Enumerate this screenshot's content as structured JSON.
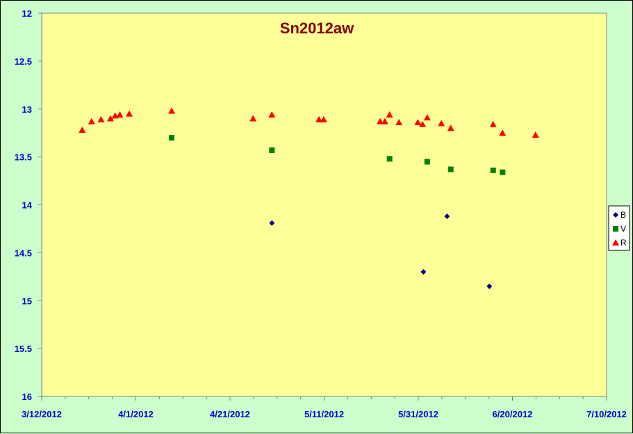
{
  "chart_data": {
    "type": "scatter",
    "title": "Sn2012aw",
    "xlabel": "",
    "ylabel": "",
    "x_tick_labels": [
      "3/12/2012",
      "4/1/2012",
      "4/21/2012",
      "5/11/2012",
      "5/31/2012",
      "6/20/2012",
      "7/10/2012"
    ],
    "x_tick_days": [
      0,
      20,
      40,
      60,
      80,
      100,
      120
    ],
    "x_minor_days": [
      5,
      10,
      15,
      25,
      30,
      35,
      45,
      50,
      55,
      65,
      70,
      75,
      85,
      90,
      95,
      105,
      110,
      115
    ],
    "xlim_days": [
      0,
      120
    ],
    "y_tick_labels": [
      "12",
      "12.5",
      "13",
      "13.5",
      "14",
      "14.5",
      "15",
      "15.5",
      "16"
    ],
    "y_tick_values": [
      12,
      12.5,
      13,
      13.5,
      14,
      14.5,
      15,
      15.5,
      16
    ],
    "ylim": [
      12,
      16
    ],
    "y_reversed": true,
    "grid": false,
    "legend_position": "right",
    "colors": {
      "plot_bg": "#ffff99",
      "outer_bg": "#ccffcc",
      "B": "#000080",
      "V": "#008000",
      "R": "#ff0000"
    },
    "series": [
      {
        "name": "B",
        "marker": "diamond",
        "x": [
          48.9,
          81.1,
          86.1,
          95.1
        ],
        "y": [
          14.19,
          14.7,
          14.12,
          14.85
        ]
      },
      {
        "name": "V",
        "marker": "square",
        "x": [
          27.6,
          48.9,
          73.9,
          81.9,
          86.9,
          95.9,
          97.9
        ],
        "y": [
          13.3,
          13.43,
          13.52,
          13.55,
          13.63,
          13.64,
          13.66
        ]
      },
      {
        "name": "R",
        "marker": "triangle",
        "x": [
          8.6,
          10.6,
          12.6,
          14.6,
          15.6,
          16.6,
          18.6,
          27.6,
          44.9,
          48.9,
          58.9,
          59.9,
          71.9,
          72.9,
          73.9,
          75.9,
          79.9,
          80.9,
          81.9,
          84.9,
          86.9,
          95.9,
          97.9,
          104.9
        ],
        "y": [
          13.22,
          13.13,
          13.11,
          13.1,
          13.07,
          13.06,
          13.05,
          13.02,
          13.1,
          13.06,
          13.11,
          13.11,
          13.13,
          13.13,
          13.06,
          13.14,
          13.14,
          13.16,
          13.09,
          13.15,
          13.2,
          13.16,
          13.25,
          13.27
        ]
      }
    ]
  }
}
